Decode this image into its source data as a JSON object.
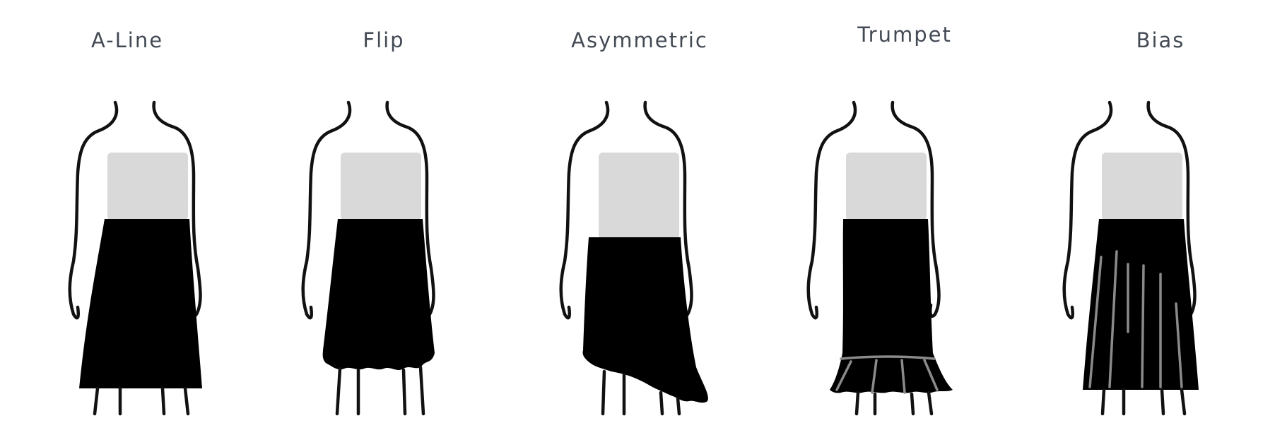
{
  "colors": {
    "background": "#ffffff",
    "title_text": "#434a54",
    "top": "#d9d9d9",
    "skirt": "#000000",
    "seam_lines": "#8a8a8a"
  },
  "styles": [
    {
      "label": "A-Line"
    },
    {
      "label": "Flip"
    },
    {
      "label": "Asymmetric"
    },
    {
      "label": "Trumpet"
    },
    {
      "label": "Bias"
    }
  ]
}
